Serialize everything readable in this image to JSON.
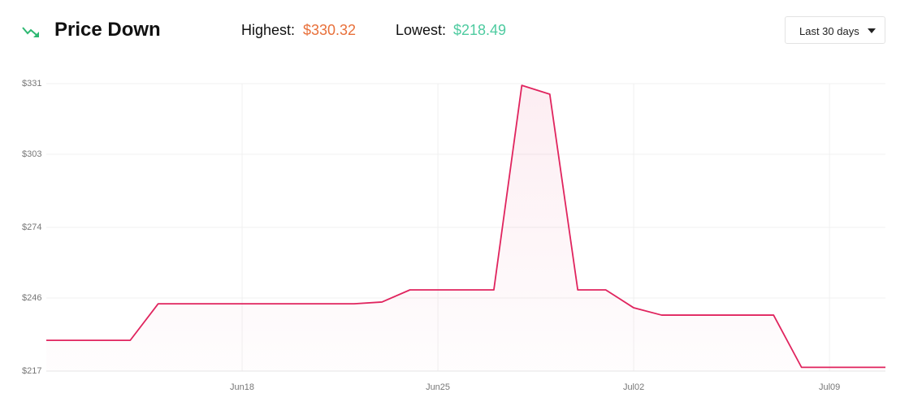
{
  "header": {
    "title": "Price Down",
    "highest_label": "Highest:",
    "highest_value": "$330.32",
    "lowest_label": "Lowest:",
    "lowest_value": "$218.49",
    "range_select": "Last 30 days"
  },
  "chart_data": {
    "type": "line",
    "x": [
      null,
      null,
      null,
      null,
      null,
      null,
      null,
      "Jun18",
      null,
      null,
      null,
      null,
      null,
      null,
      "Jun25",
      null,
      null,
      null,
      null,
      null,
      null,
      "Jul02",
      null,
      null,
      null,
      null,
      null,
      null,
      "Jul09",
      null,
      null
    ],
    "series": [
      {
        "name": "Price",
        "color": "#e0245e",
        "values": [
          229.2,
          229.2,
          229.2,
          229.2,
          243.7,
          243.7,
          243.7,
          243.7,
          243.7,
          243.7,
          243.7,
          243.7,
          244.4,
          249.2,
          249.2,
          249.2,
          249.2,
          330.32,
          326.8,
          249.2,
          249.2,
          242.1,
          239.2,
          239.2,
          239.2,
          239.2,
          239.2,
          218.49,
          218.49,
          218.49,
          218.49
        ]
      }
    ],
    "ylim": [
      217,
      331
    ],
    "yticks": [
      {
        "value": 217,
        "label": "$217"
      },
      {
        "value": 246,
        "label": "$246"
      },
      {
        "value": 274,
        "label": "$274"
      },
      {
        "value": 303,
        "label": "$303"
      },
      {
        "value": 331,
        "label": "$331"
      }
    ],
    "grid": true
  }
}
